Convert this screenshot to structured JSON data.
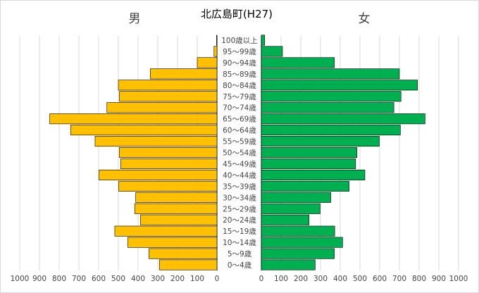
{
  "chart_data": {
    "type": "bar",
    "title": "北広島町(H27)",
    "left_label": "男",
    "right_label": "女",
    "categories": [
      "0〜4歳",
      "5〜9歳",
      "10〜14歳",
      "15〜19歳",
      "20〜24歳",
      "25〜29歳",
      "30〜34歳",
      "35〜39歳",
      "40〜44歳",
      "45〜49歳",
      "50〜54歳",
      "55〜59歳",
      "60〜64歳",
      "65〜69歳",
      "70〜74歳",
      "75〜79歳",
      "80〜84歳",
      "85〜89歳",
      "90〜94歳",
      "95〜99歳",
      "100歳以上"
    ],
    "series": [
      {
        "name": "男",
        "color": "#FFC000",
        "values": [
          292,
          345,
          452,
          518,
          388,
          417,
          412,
          498,
          598,
          488,
          495,
          618,
          742,
          848,
          558,
          495,
          500,
          338,
          100,
          15,
          2
        ]
      },
      {
        "name": "女",
        "color": "#00B050",
        "values": [
          273,
          370,
          412,
          372,
          242,
          298,
          352,
          445,
          525,
          478,
          485,
          598,
          705,
          830,
          672,
          708,
          792,
          700,
          370,
          107,
          17
        ]
      }
    ],
    "xlim": [
      0,
      1000
    ],
    "ticks": [
      "0",
      "100",
      "200",
      "300",
      "400",
      "500",
      "600",
      "700",
      "800",
      "900",
      "1000"
    ],
    "grid": true,
    "legend": "none"
  }
}
